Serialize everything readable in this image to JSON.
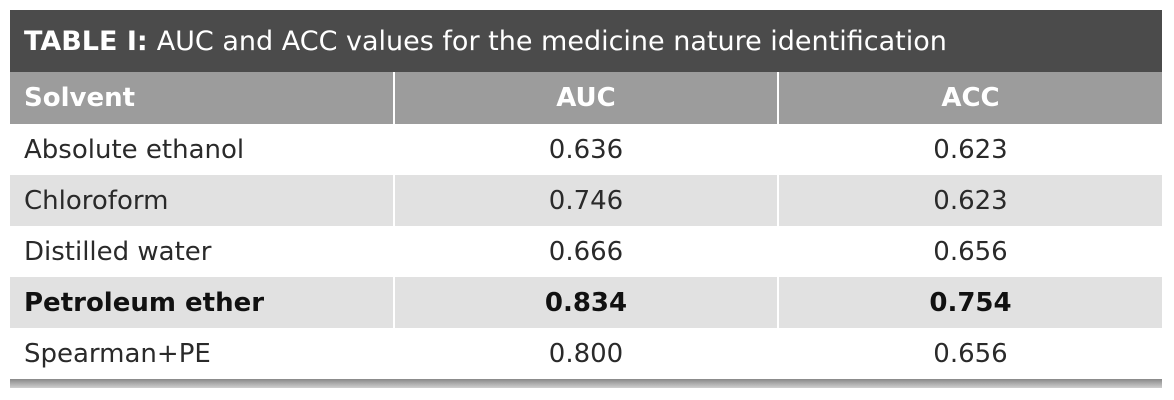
{
  "table": {
    "title": {
      "label": "TABLE I:",
      "text": "AUC and ACC values for the medicine nature identification"
    },
    "header": [
      "Solvent",
      "AUC",
      "ACC"
    ],
    "rows": [
      [
        "Absolute ethanol",
        "0.636",
        "0.623"
      ],
      [
        "Chloroform",
        "0.746",
        "0.623"
      ],
      [
        "Distilled water",
        "0.666",
        "0.656"
      ],
      [
        "Petroleum ether",
        "0.834",
        "0.754"
      ],
      [
        "Spearman+PE",
        "0.800",
        "0.656"
      ]
    ],
    "bold_rows": [
      3
    ]
  }
}
